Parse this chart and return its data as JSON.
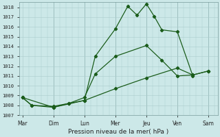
{
  "xlabel": "Pression niveau de la mer( hPa )",
  "x_labels": [
    "Mar",
    "Dim",
    "Lun",
    "Mer",
    "Jeu",
    "Ven",
    "Sam"
  ],
  "ylim": [
    1007,
    1018.5
  ],
  "yticks": [
    1007,
    1008,
    1009,
    1010,
    1011,
    1012,
    1013,
    1014,
    1015,
    1016,
    1017,
    1018
  ],
  "bg_color": "#cce8e8",
  "grid_color": "#aacccc",
  "line_color": "#1a5c1a",
  "figsize": [
    3.2,
    2.0
  ],
  "dpi": 100,
  "line1_x": [
    0,
    0.3,
    1.0,
    1.5,
    2.0,
    2.35,
    3.0,
    3.4,
    3.7,
    4.0,
    4.25,
    4.5,
    5.0,
    5.5
  ],
  "line1_y": [
    1008.8,
    1008.0,
    1007.8,
    1008.2,
    1008.5,
    1013.0,
    1015.8,
    1018.1,
    1017.2,
    1018.35,
    1017.1,
    1015.7,
    1015.5,
    1011.0
  ],
  "line2_x": [
    0,
    0.3,
    1.0,
    1.5,
    2.0,
    2.35,
    3.0,
    4.0,
    4.5,
    5.0,
    5.5,
    6.0
  ],
  "line2_y": [
    1008.8,
    1008.0,
    1007.9,
    1008.2,
    1008.8,
    1011.2,
    1013.0,
    1014.1,
    1012.6,
    1011.0,
    1011.1,
    1011.5
  ],
  "line3_x": [
    0,
    1.0,
    2.0,
    3.0,
    4.0,
    5.0,
    5.5,
    6.0
  ],
  "line3_y": [
    1008.8,
    1007.8,
    1008.5,
    1009.7,
    1010.8,
    1011.8,
    1011.1,
    1011.5
  ]
}
